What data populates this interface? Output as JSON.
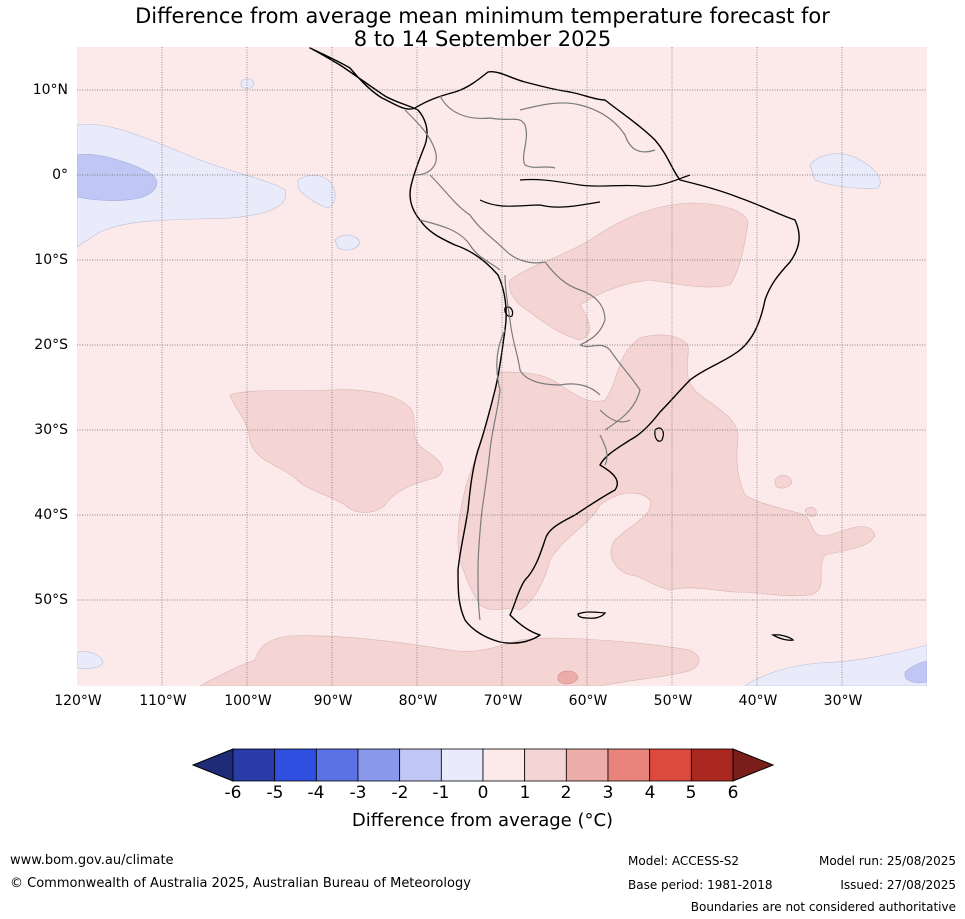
{
  "title": {
    "line1": "Difference from average mean minimum temperature forecast for",
    "line2": "8 to 14 September 2025"
  },
  "map": {
    "region": "South America",
    "background_anomaly_color": "#fbeae9",
    "anomaly_colors": {
      "0_to_1": "#fbeae9",
      "1_to_2": "#f4d5d4",
      "2_to_3": "#ecaca8",
      "-1_to_0": "#e9ebfb",
      "-2_to_-1": "#c0c7f4"
    },
    "lat_labels": [
      "10°N",
      "0°",
      "10°S",
      "20°S",
      "30°S",
      "40°S",
      "50°S"
    ],
    "lon_labels": [
      "120°W",
      "110°W",
      "100°W",
      "90°W",
      "80°W",
      "70°W",
      "60°W",
      "50°W",
      "40°W",
      "30°W"
    ]
  },
  "colorbar": {
    "ticks": [
      "-6",
      "-5",
      "-4",
      "-3",
      "-2",
      "-1",
      "0",
      "1",
      "2",
      "3",
      "4",
      "5",
      "6"
    ],
    "colors": [
      "#283ba6",
      "#2f4fe0",
      "#5b71e6",
      "#8a99ec",
      "#c0c7f4",
      "#e9ebfb",
      "#fbeae9",
      "#f4d5d4",
      "#ecaca8",
      "#e8847b",
      "#dc4a3d",
      "#aa2820"
    ],
    "under_color": "#1e2b78",
    "over_color": "#7a1e1a",
    "label": "Difference from average (°C)"
  },
  "footer": {
    "website": "www.bom.gov.au/climate",
    "copyright": "© Commonwealth of Australia 2025, Australian Bureau of Meteorology",
    "model": "Model: ACCESS-S2",
    "base_period": "Base period: 1981-2018",
    "model_run": "Model run: 25/08/2025",
    "issued": "Issued: 27/08/2025",
    "disclaimer": "Boundaries are not considered authoritative"
  }
}
